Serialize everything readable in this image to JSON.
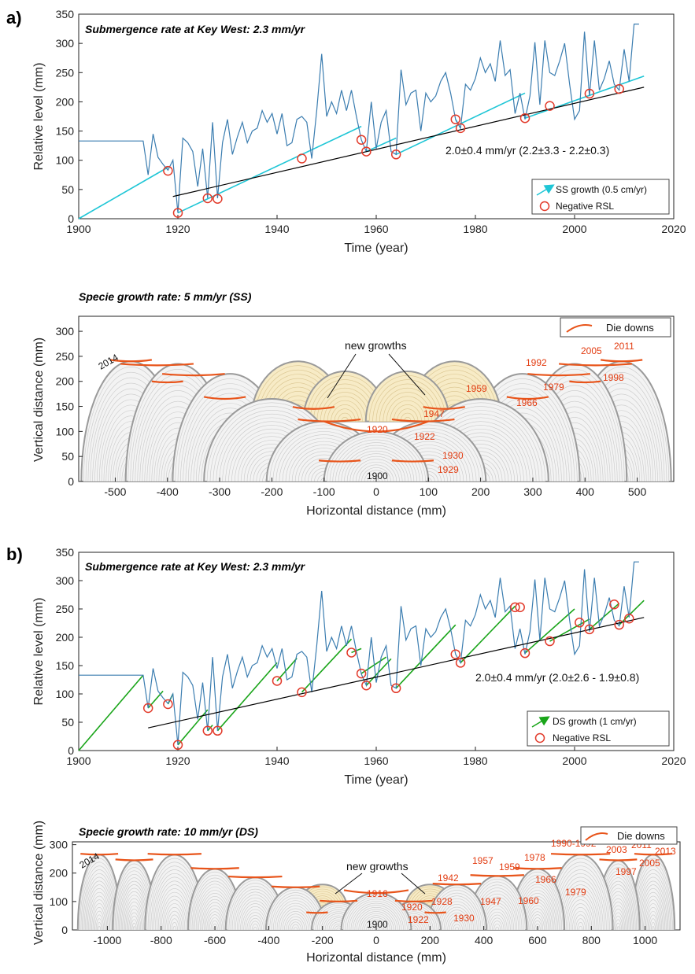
{
  "chart_data": [
    {
      "type": "line",
      "panel_label": "a)",
      "title": "Submergence rate at Key West: 2.3 mm/yr",
      "xlabel": "Time (year)",
      "ylabel": "Relative level (mm)",
      "xlim": [
        1900,
        2020
      ],
      "ylim": [
        0,
        350
      ],
      "xticks": [
        1900,
        1920,
        1940,
        1960,
        1980,
        2000,
        2020
      ],
      "yticks": [
        0,
        50,
        100,
        150,
        200,
        250,
        300,
        350
      ],
      "annotation": "2.0±0.4 mm/yr (2.2±3.3 - 2.2±0.3)",
      "legend_position": "bottom-right",
      "legend": [
        "SS growth (0.5 cm/yr)",
        "Negative RSL"
      ],
      "series": [
        {
          "name": "",
          "role": "rsl",
          "color": "#3b7db0",
          "x": [
            1900,
            1913,
            1914,
            1915,
            1916,
            1917,
            1918,
            1919,
            1920,
            1921,
            1922,
            1923,
            1924,
            1925,
            1926,
            1927,
            1928,
            1929,
            1930,
            1931,
            1932,
            1933,
            1934,
            1935,
            1936,
            1937,
            1938,
            1939,
            1940,
            1941,
            1942,
            1943,
            1944,
            1945,
            1946,
            1947,
            1948,
            1949,
            1950,
            1951,
            1952,
            1953,
            1954,
            1955,
            1956,
            1957,
            1958,
            1959,
            1960,
            1961,
            1962,
            1963,
            1964,
            1965,
            1966,
            1967,
            1968,
            1969,
            1970,
            1971,
            1972,
            1973,
            1974,
            1975,
            1976,
            1977,
            1978,
            1979,
            1980,
            1981,
            1982,
            1983,
            1984,
            1985,
            1986,
            1987,
            1988,
            1989,
            1990,
            1991,
            1992,
            1993,
            1994,
            1995,
            1996,
            1997,
            1998,
            1999,
            2000,
            2001,
            2002,
            2003,
            2004,
            2005,
            2006,
            2007,
            2008,
            2009,
            2010,
            2011,
            2012,
            2013
          ],
          "y": [
            133,
            133,
            75,
            145,
            105,
            93,
            83,
            100,
            10,
            138,
            130,
            115,
            55,
            120,
            35,
            165,
            35,
            130,
            170,
            110,
            140,
            165,
            130,
            150,
            155,
            185,
            165,
            180,
            145,
            180,
            125,
            130,
            170,
            175,
            165,
            103,
            185,
            282,
            175,
            200,
            180,
            220,
            185,
            220,
            175,
            135,
            115,
            200,
            120,
            165,
            185,
            115,
            110,
            255,
            195,
            215,
            220,
            150,
            215,
            200,
            210,
            235,
            250,
            215,
            170,
            155,
            230,
            220,
            240,
            275,
            250,
            265,
            235,
            305,
            245,
            255,
            180,
            215,
            170,
            210,
            302,
            195,
            305,
            250,
            245,
            270,
            300,
            230,
            170,
            185,
            320,
            210,
            305,
            220,
            240,
            270,
            230,
            220,
            290,
            235,
            333,
            333
          ]
        },
        {
          "name": "",
          "role": "trend",
          "color": "#000000",
          "x": [
            1919,
            2014
          ],
          "y": [
            38,
            225
          ]
        },
        {
          "name": "",
          "role": "growth",
          "color": "#1fc6d6",
          "segments": [
            [
              [
                1900,
                0
              ],
              [
                1918,
                88
              ]
            ],
            [
              [
                1920,
                10
              ],
              [
                1957,
                158
              ]
            ],
            [
              [
                1958,
                115
              ],
              [
                1964,
                138
              ]
            ],
            [
              [
                1964,
                110
              ],
              [
                1990,
                215
              ]
            ],
            [
              [
                1976,
                170
              ],
              [
                1977,
                155
              ]
            ],
            [
              [
                1990,
                172
              ],
              [
                2014,
                244
              ]
            ]
          ]
        }
      ],
      "negative_rsl_points": [
        [
          1918,
          82
        ],
        [
          1920,
          10
        ],
        [
          1926,
          35
        ],
        [
          1928,
          34
        ],
        [
          1945,
          103
        ],
        [
          1957,
          135
        ],
        [
          1958,
          115
        ],
        [
          1964,
          110
        ],
        [
          1976,
          170
        ],
        [
          1977,
          155
        ],
        [
          1990,
          172
        ],
        [
          1995,
          193
        ],
        [
          2003,
          214
        ],
        [
          2009,
          222
        ]
      ]
    },
    {
      "type": "diagram",
      "title": "Specie growth rate: 5 mm/yr (SS)",
      "xlabel": "Horizontal distance (mm)",
      "ylabel": "Vertical distance (mm)",
      "xlim": [
        -570,
        570
      ],
      "ylim": [
        0,
        330
      ],
      "xticks": [
        -500,
        -400,
        -300,
        -200,
        -100,
        0,
        100,
        200,
        300,
        400,
        500
      ],
      "yticks": [
        0,
        50,
        100,
        150,
        200,
        250,
        300
      ],
      "legend": [
        "Die downs"
      ],
      "legend_position": "top-right",
      "callout": "new growths",
      "center_label": "1900",
      "corner_label": "2014",
      "year_labels": [
        "1920",
        "1922",
        "1930",
        "1929",
        "1947",
        "1959",
        "1966",
        "1979",
        "1992",
        "2005",
        "2011",
        "1998"
      ]
    },
    {
      "type": "line",
      "panel_label": "b)",
      "title": "Submergence rate at Key West: 2.3 mm/yr",
      "xlabel": "Time (year)",
      "ylabel": "Relative level (mm)",
      "xlim": [
        1900,
        2020
      ],
      "ylim": [
        0,
        350
      ],
      "xticks": [
        1900,
        1920,
        1940,
        1960,
        1980,
        2000,
        2020
      ],
      "yticks": [
        0,
        50,
        100,
        150,
        200,
        250,
        300,
        350
      ],
      "annotation": "2.0±0.4 mm/yr (2.0±2.6 - 1.9±0.8)",
      "legend_position": "bottom-right",
      "legend": [
        "DS growth (1 cm/yr)",
        "Negative RSL"
      ],
      "series": [
        {
          "name": "",
          "role": "rsl",
          "color": "#3b7db0",
          "x": [
            1900,
            1913,
            1914,
            1915,
            1916,
            1917,
            1918,
            1919,
            1920,
            1921,
            1922,
            1923,
            1924,
            1925,
            1926,
            1927,
            1928,
            1929,
            1930,
            1931,
            1932,
            1933,
            1934,
            1935,
            1936,
            1937,
            1938,
            1939,
            1940,
            1941,
            1942,
            1943,
            1944,
            1945,
            1946,
            1947,
            1948,
            1949,
            1950,
            1951,
            1952,
            1953,
            1954,
            1955,
            1956,
            1957,
            1958,
            1959,
            1960,
            1961,
            1962,
            1963,
            1964,
            1965,
            1966,
            1967,
            1968,
            1969,
            1970,
            1971,
            1972,
            1973,
            1974,
            1975,
            1976,
            1977,
            1978,
            1979,
            1980,
            1981,
            1982,
            1983,
            1984,
            1985,
            1986,
            1987,
            1988,
            1989,
            1990,
            1991,
            1992,
            1993,
            1994,
            1995,
            1996,
            1997,
            1998,
            1999,
            2000,
            2001,
            2002,
            2003,
            2004,
            2005,
            2006,
            2007,
            2008,
            2009,
            2010,
            2011,
            2012,
            2013
          ],
          "y": [
            133,
            133,
            75,
            145,
            105,
            93,
            83,
            100,
            10,
            138,
            130,
            115,
            55,
            120,
            35,
            165,
            35,
            130,
            170,
            110,
            140,
            165,
            130,
            150,
            155,
            185,
            165,
            180,
            145,
            180,
            125,
            130,
            170,
            175,
            165,
            103,
            185,
            282,
            175,
            200,
            180,
            220,
            185,
            220,
            175,
            135,
            115,
            200,
            120,
            165,
            185,
            115,
            110,
            255,
            195,
            215,
            220,
            150,
            215,
            200,
            210,
            235,
            250,
            215,
            170,
            155,
            230,
            220,
            240,
            275,
            250,
            265,
            235,
            305,
            245,
            255,
            180,
            215,
            170,
            210,
            302,
            195,
            305,
            250,
            245,
            270,
            300,
            230,
            170,
            185,
            320,
            210,
            305,
            220,
            240,
            270,
            230,
            220,
            290,
            235,
            333,
            333
          ]
        },
        {
          "name": "",
          "role": "trend",
          "color": "#000000",
          "x": [
            1914,
            2014
          ],
          "y": [
            40,
            235
          ]
        },
        {
          "name": "",
          "role": "growth",
          "color": "#1aa51a",
          "segments": [
            [
              [
                1900,
                0
              ],
              [
                1913,
                133
              ]
            ],
            [
              [
                1914,
                75
              ],
              [
                1917,
                105
              ]
            ],
            [
              [
                1918,
                82
              ],
              [
                1919,
                100
              ]
            ],
            [
              [
                1920,
                10
              ],
              [
                1926,
                72
              ]
            ],
            [
              [
                1926,
                35
              ],
              [
                1927,
                45
              ]
            ],
            [
              [
                1928,
                35
              ],
              [
                1940,
                155
              ]
            ],
            [
              [
                1940,
                123
              ],
              [
                1944,
                163
              ]
            ],
            [
              [
                1945,
                103
              ],
              [
                1955,
                197
              ]
            ],
            [
              [
                1955,
                173
              ],
              [
                1957,
                180
              ]
            ],
            [
              [
                1957,
                136
              ],
              [
                1962,
                165
              ]
            ],
            [
              [
                1958,
                115
              ],
              [
                1963,
                162
              ]
            ],
            [
              [
                1964,
                110
              ],
              [
                1976,
                222
              ]
            ],
            [
              [
                1977,
                155
              ],
              [
                1988,
                255
              ]
            ],
            [
              [
                1990,
                172
              ],
              [
                2000,
                250
              ]
            ],
            [
              [
                1995,
                193
              ],
              [
                2003,
                232
              ]
            ],
            [
              [
                2003,
                214
              ],
              [
                2009,
                260
              ]
            ],
            [
              [
                2009,
                222
              ],
              [
                2014,
                265
              ]
            ]
          ]
        }
      ],
      "negative_rsl_points": [
        [
          1914,
          75
        ],
        [
          1918,
          82
        ],
        [
          1920,
          10
        ],
        [
          1926,
          35
        ],
        [
          1928,
          35
        ],
        [
          1940,
          123
        ],
        [
          1945,
          103
        ],
        [
          1955,
          173
        ],
        [
          1957,
          136
        ],
        [
          1958,
          115
        ],
        [
          1964,
          110
        ],
        [
          1976,
          170
        ],
        [
          1977,
          155
        ],
        [
          1988,
          253
        ],
        [
          1989,
          253
        ],
        [
          1990,
          172
        ],
        [
          1995,
          193
        ],
        [
          2001,
          226
        ],
        [
          2003,
          214
        ],
        [
          2008,
          258
        ],
        [
          2009,
          222
        ],
        [
          2011,
          233
        ]
      ]
    },
    {
      "type": "diagram",
      "title": "Specie growth rate: 10 mm/yr (DS)",
      "xlabel": "Horizontal distance (mm)",
      "ylabel": "Vertical distance (mm)",
      "xlim": [
        -1130,
        1130
      ],
      "ylim": [
        0,
        310
      ],
      "xticks": [
        -1000,
        -800,
        -600,
        -400,
        -200,
        0,
        200,
        400,
        600,
        800,
        1000
      ],
      "yticks": [
        0,
        100,
        200,
        300
      ],
      "legend": [
        "Die downs"
      ],
      "legend_position": "top-right",
      "callout": "new growths",
      "center_label": "1900",
      "corner_label": "2014",
      "year_labels": [
        "1916",
        "1920",
        "1922",
        "1928",
        "1930",
        "1942",
        "1947",
        "1957",
        "1959",
        "1960",
        "1966",
        "1978",
        "1979",
        "1990-1992",
        "1997",
        "2003",
        "2005",
        "2011",
        "2013"
      ]
    }
  ]
}
